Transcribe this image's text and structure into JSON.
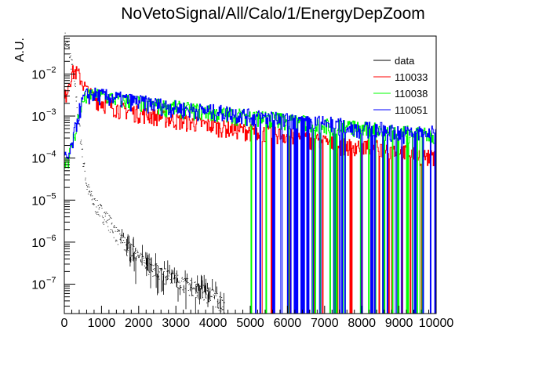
{
  "chart_data": {
    "type": "line",
    "title": "NoVetoSignal/All/Calo/1/EnergyDepZoom",
    "xlabel": "",
    "ylabel": "A.U.",
    "xlim": [
      0,
      10000
    ],
    "ylim": [
      2e-08,
      0.08
    ],
    "yscale": "log",
    "grid": false,
    "legend_position": "top-right",
    "x_ticks": [
      {
        "value": 0,
        "label": "0"
      },
      {
        "value": 1000,
        "label": "1000"
      },
      {
        "value": 2000,
        "label": "2000"
      },
      {
        "value": 3000,
        "label": "3000"
      },
      {
        "value": 4000,
        "label": "4000"
      },
      {
        "value": 5000,
        "label": "5000"
      },
      {
        "value": 6000,
        "label": "6000"
      },
      {
        "value": 7000,
        "label": "7000"
      },
      {
        "value": 8000,
        "label": "8000"
      },
      {
        "value": 9000,
        "label": "9000"
      },
      {
        "value": 10000,
        "label": "10000"
      }
    ],
    "y_ticks": [
      {
        "value": 1e-07,
        "base": "10",
        "exp": "−7"
      },
      {
        "value": 1e-06,
        "base": "10",
        "exp": "−6"
      },
      {
        "value": 1e-05,
        "base": "10",
        "exp": "−5"
      },
      {
        "value": 0.0001,
        "base": "10",
        "exp": "−4"
      },
      {
        "value": 0.001,
        "base": "10",
        "exp": "−3"
      },
      {
        "value": 0.01,
        "base": "10",
        "exp": "−2"
      }
    ],
    "series": [
      {
        "name": "data",
        "color": "#000000",
        "style": "dots",
        "x": [
          0,
          100,
          200,
          300,
          400,
          500,
          600,
          700,
          800,
          1000,
          1200,
          1400,
          1600,
          1800,
          2000,
          2200,
          2500,
          2800,
          3200,
          3600,
          4000,
          4300
        ],
        "y": [
          0.07,
          0.04,
          0.015,
          0.003,
          0.0005,
          8e-05,
          2e-05,
          1.2e-05,
          8e-06,
          5e-06,
          3e-06,
          1.5e-06,
          9e-07,
          6e-07,
          4e-07,
          3e-07,
          2e-07,
          1.5e-07,
          1e-07,
          7e-08,
          5e-08,
          3e-08
        ]
      },
      {
        "name": "110033",
        "color": "#ff0000",
        "style": "histogram",
        "x": [
          0,
          100,
          200,
          300,
          400,
          500,
          600,
          700,
          800,
          1000,
          1200,
          1500,
          2000,
          2500,
          3000,
          3500,
          4000,
          4500,
          5000,
          5500,
          6000,
          6500,
          7000,
          7500,
          8000,
          8500,
          9000,
          9500,
          10000
        ],
        "y": [
          0.0025,
          0.006,
          0.011,
          0.0115,
          0.009,
          0.006,
          0.004,
          0.0032,
          0.0027,
          0.0022,
          0.0018,
          0.0015,
          0.0012,
          0.001,
          0.0008,
          0.0007,
          0.0006,
          0.0005,
          0.00045,
          0.0004,
          0.00035,
          0.0003,
          0.00025,
          0.0002,
          0.0002,
          0.00018,
          0.00015,
          0.00012,
          0.0001
        ]
      },
      {
        "name": "110038",
        "color": "#00ff00",
        "style": "histogram",
        "x": [
          0,
          100,
          200,
          300,
          400,
          500,
          600,
          700,
          800,
          1000,
          1500,
          2000,
          2500,
          3000,
          3500,
          4000,
          4500,
          5000,
          5500,
          6000,
          6500,
          7000,
          7500,
          8000,
          8500,
          9000,
          9500,
          10000
        ],
        "y": [
          0.0001,
          0.0001,
          0.0002,
          0.0005,
          0.0012,
          0.0023,
          0.003,
          0.0033,
          0.0032,
          0.003,
          0.0025,
          0.0021,
          0.0018,
          0.0016,
          0.0014,
          0.0012,
          0.0011,
          0.001,
          0.0009,
          0.0008,
          0.0007,
          0.0006,
          0.0006,
          0.0005,
          0.0005,
          0.0004,
          0.0004,
          0.0003
        ]
      },
      {
        "name": "110051",
        "color": "#0000ff",
        "style": "histogram",
        "x": [
          0,
          100,
          200,
          300,
          400,
          500,
          600,
          700,
          800,
          1000,
          1500,
          2000,
          2500,
          3000,
          3500,
          4000,
          4500,
          5000,
          5500,
          6000,
          6500,
          7000,
          7500,
          8000,
          8500,
          9000,
          9500,
          10000
        ],
        "y": [
          0.0001,
          0.0001,
          0.0002,
          0.0006,
          0.0014,
          0.0025,
          0.0032,
          0.0034,
          0.0033,
          0.0031,
          0.0026,
          0.0022,
          0.0019,
          0.0016,
          0.0014,
          0.0013,
          0.0012,
          0.001,
          0.0009,
          0.0008,
          0.0007,
          0.0007,
          0.0006,
          0.0005,
          0.0005,
          0.0004,
          0.0004,
          0.0004
        ]
      }
    ]
  }
}
